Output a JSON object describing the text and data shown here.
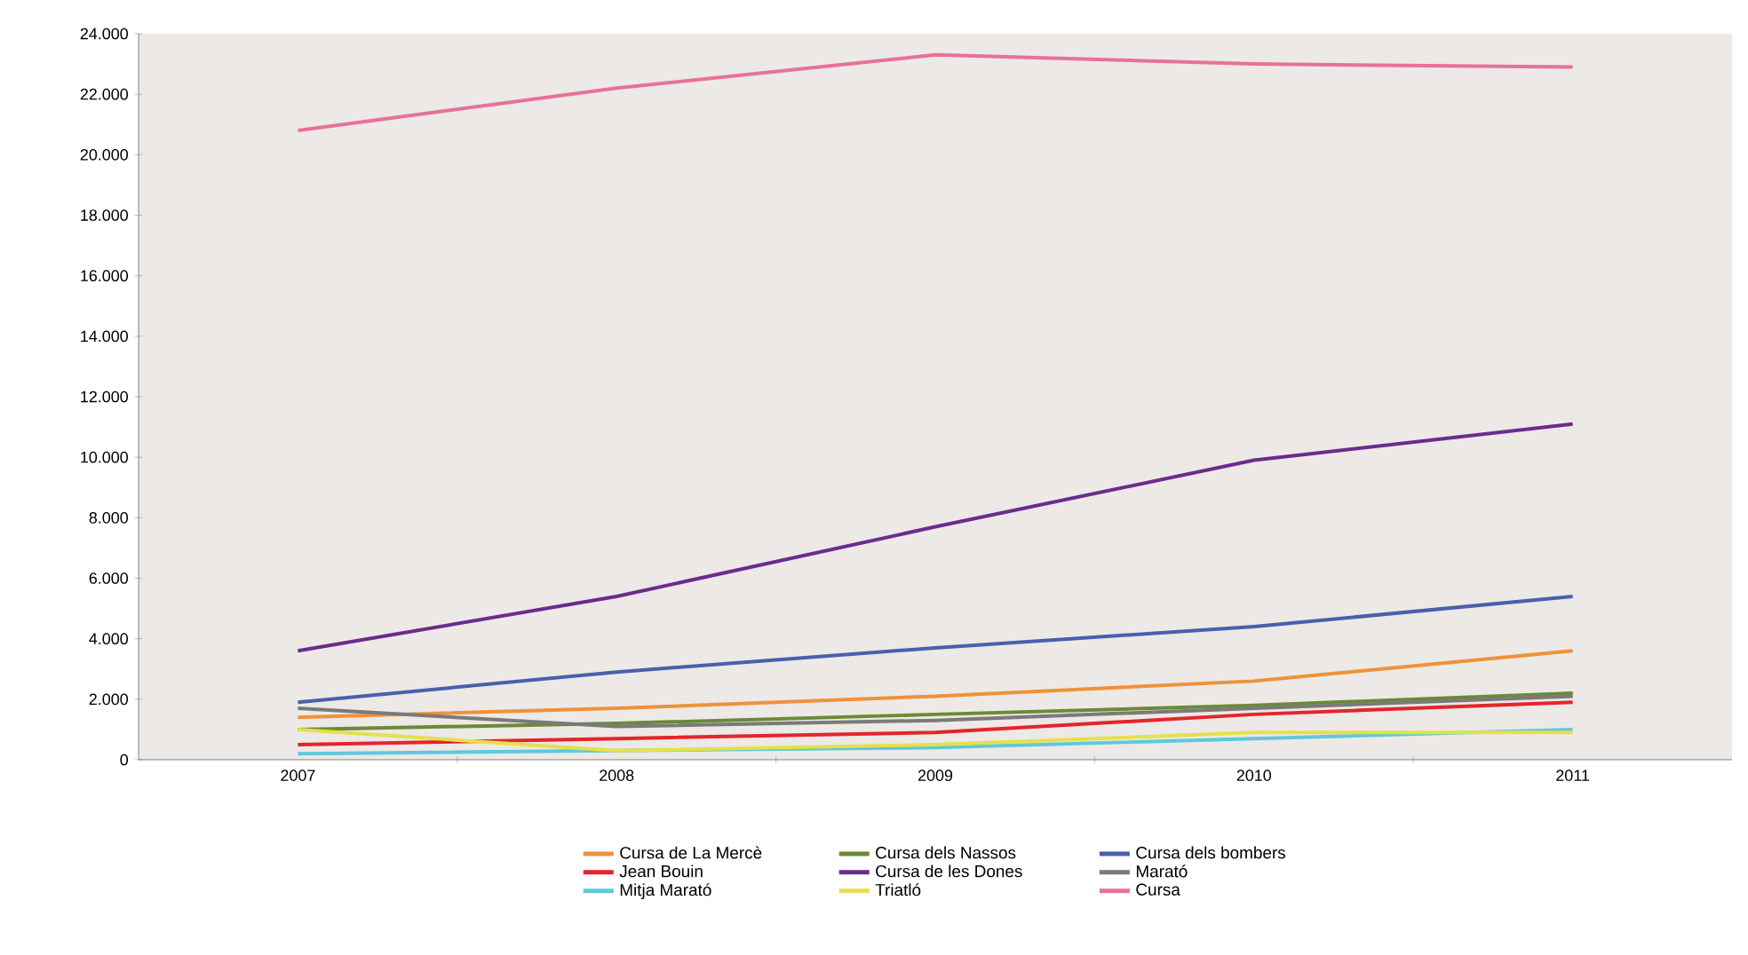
{
  "chart_data": {
    "type": "line",
    "categories": [
      "2007",
      "2008",
      "2009",
      "2010",
      "2011"
    ],
    "series": [
      {
        "name": "Cursa de La Mercè",
        "color": "#f0913a",
        "values": [
          1400,
          1700,
          2100,
          2600,
          3600
        ]
      },
      {
        "name": "Cursa dels Nassos",
        "color": "#6b8a35",
        "values": [
          1000,
          1200,
          1500,
          1800,
          2200
        ]
      },
      {
        "name": "Cursa dels bombers",
        "color": "#4a5fae",
        "values": [
          1900,
          2900,
          3700,
          4400,
          5400
        ]
      },
      {
        "name": "Jean Bouin",
        "color": "#e5242b",
        "values": [
          500,
          700,
          900,
          1500,
          1900
        ]
      },
      {
        "name": "Cursa de les Dones",
        "color": "#6a2c8c",
        "values": [
          3600,
          5400,
          7700,
          9900,
          11100
        ]
      },
      {
        "name": "Marató",
        "color": "#7a7a7a",
        "values": [
          1700,
          1100,
          1300,
          1700,
          2100
        ]
      },
      {
        "name": "Mitja Marató",
        "color": "#5fc8dc",
        "values": [
          200,
          300,
          400,
          700,
          1000
        ]
      },
      {
        "name": "Triatló",
        "color": "#e5e04a",
        "values": [
          1000,
          300,
          500,
          900,
          900
        ]
      },
      {
        "name": "Cursa",
        "color": "#e8709c",
        "values": [
          20800,
          22200,
          23300,
          23000,
          22900
        ]
      }
    ],
    "ylim": [
      0,
      24000
    ],
    "yticks": [
      {
        "value": 0,
        "label": "0"
      },
      {
        "value": 2000,
        "label": "2.000"
      },
      {
        "value": 4000,
        "label": "4.000"
      },
      {
        "value": 6000,
        "label": "6.000"
      },
      {
        "value": 8000,
        "label": "8.000"
      },
      {
        "value": 10000,
        "label": "10.000"
      },
      {
        "value": 12000,
        "label": "12.000"
      },
      {
        "value": 14000,
        "label": "14.000"
      },
      {
        "value": 16000,
        "label": "16.000"
      },
      {
        "value": 18000,
        "label": "18.000"
      },
      {
        "value": 20000,
        "label": "20.000"
      },
      {
        "value": 22000,
        "label": "22.000"
      },
      {
        "value": 24000,
        "label": "24.000"
      }
    ],
    "legend": "bottom",
    "marker": "none",
    "line_style": "solid",
    "grid": false
  }
}
